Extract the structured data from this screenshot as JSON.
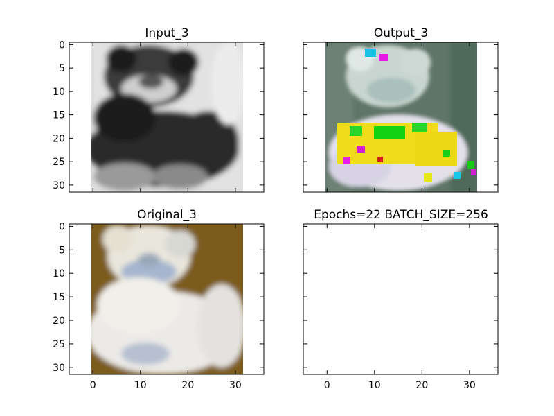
{
  "figure": {
    "panels": [
      {
        "id": "input",
        "title": "Input_3"
      },
      {
        "id": "output",
        "title": "Output_3"
      },
      {
        "id": "original",
        "title": "Original_3"
      },
      {
        "id": "empty",
        "title": "Epochs=22 BATCH_SIZE=256"
      }
    ]
  },
  "chart_data": [
    {
      "type": "heatmap",
      "title": "Input_3",
      "description": "grayscale input image",
      "xlim": [
        -5,
        36
      ],
      "ylim": [
        31.5,
        -0.5
      ],
      "yticks": [
        0,
        5,
        10,
        15,
        20,
        25,
        30
      ],
      "xticks": [],
      "ytick_labels": [
        "0",
        "5",
        "10",
        "15",
        "20",
        "25",
        "30"
      ]
    },
    {
      "type": "heatmap",
      "title": "Output_3",
      "description": "reconstructed color image",
      "xlim": [
        -5,
        36
      ],
      "ylim": [
        31.5,
        -0.5
      ],
      "yticks": [],
      "xticks": []
    },
    {
      "type": "heatmap",
      "title": "Original_3",
      "description": "original color image",
      "xlim": [
        -5,
        36
      ],
      "ylim": [
        31.5,
        -0.5
      ],
      "yticks": [
        0,
        5,
        10,
        15,
        20,
        25,
        30
      ],
      "xticks": [
        0,
        10,
        20,
        30
      ],
      "xtick_labels": [
        "0",
        "10",
        "20",
        "30"
      ],
      "ytick_labels": [
        "0",
        "5",
        "10",
        "15",
        "20",
        "25",
        "30"
      ]
    },
    {
      "type": "heatmap",
      "title": "Epochs=22 BATCH_SIZE=256",
      "description": "empty axes",
      "xlim": [
        -5,
        36
      ],
      "ylim": [
        31.5,
        -0.5
      ],
      "yticks": [],
      "xticks": [
        0,
        10,
        20,
        30
      ],
      "xtick_labels": [
        "0",
        "10",
        "20",
        "30"
      ]
    }
  ]
}
